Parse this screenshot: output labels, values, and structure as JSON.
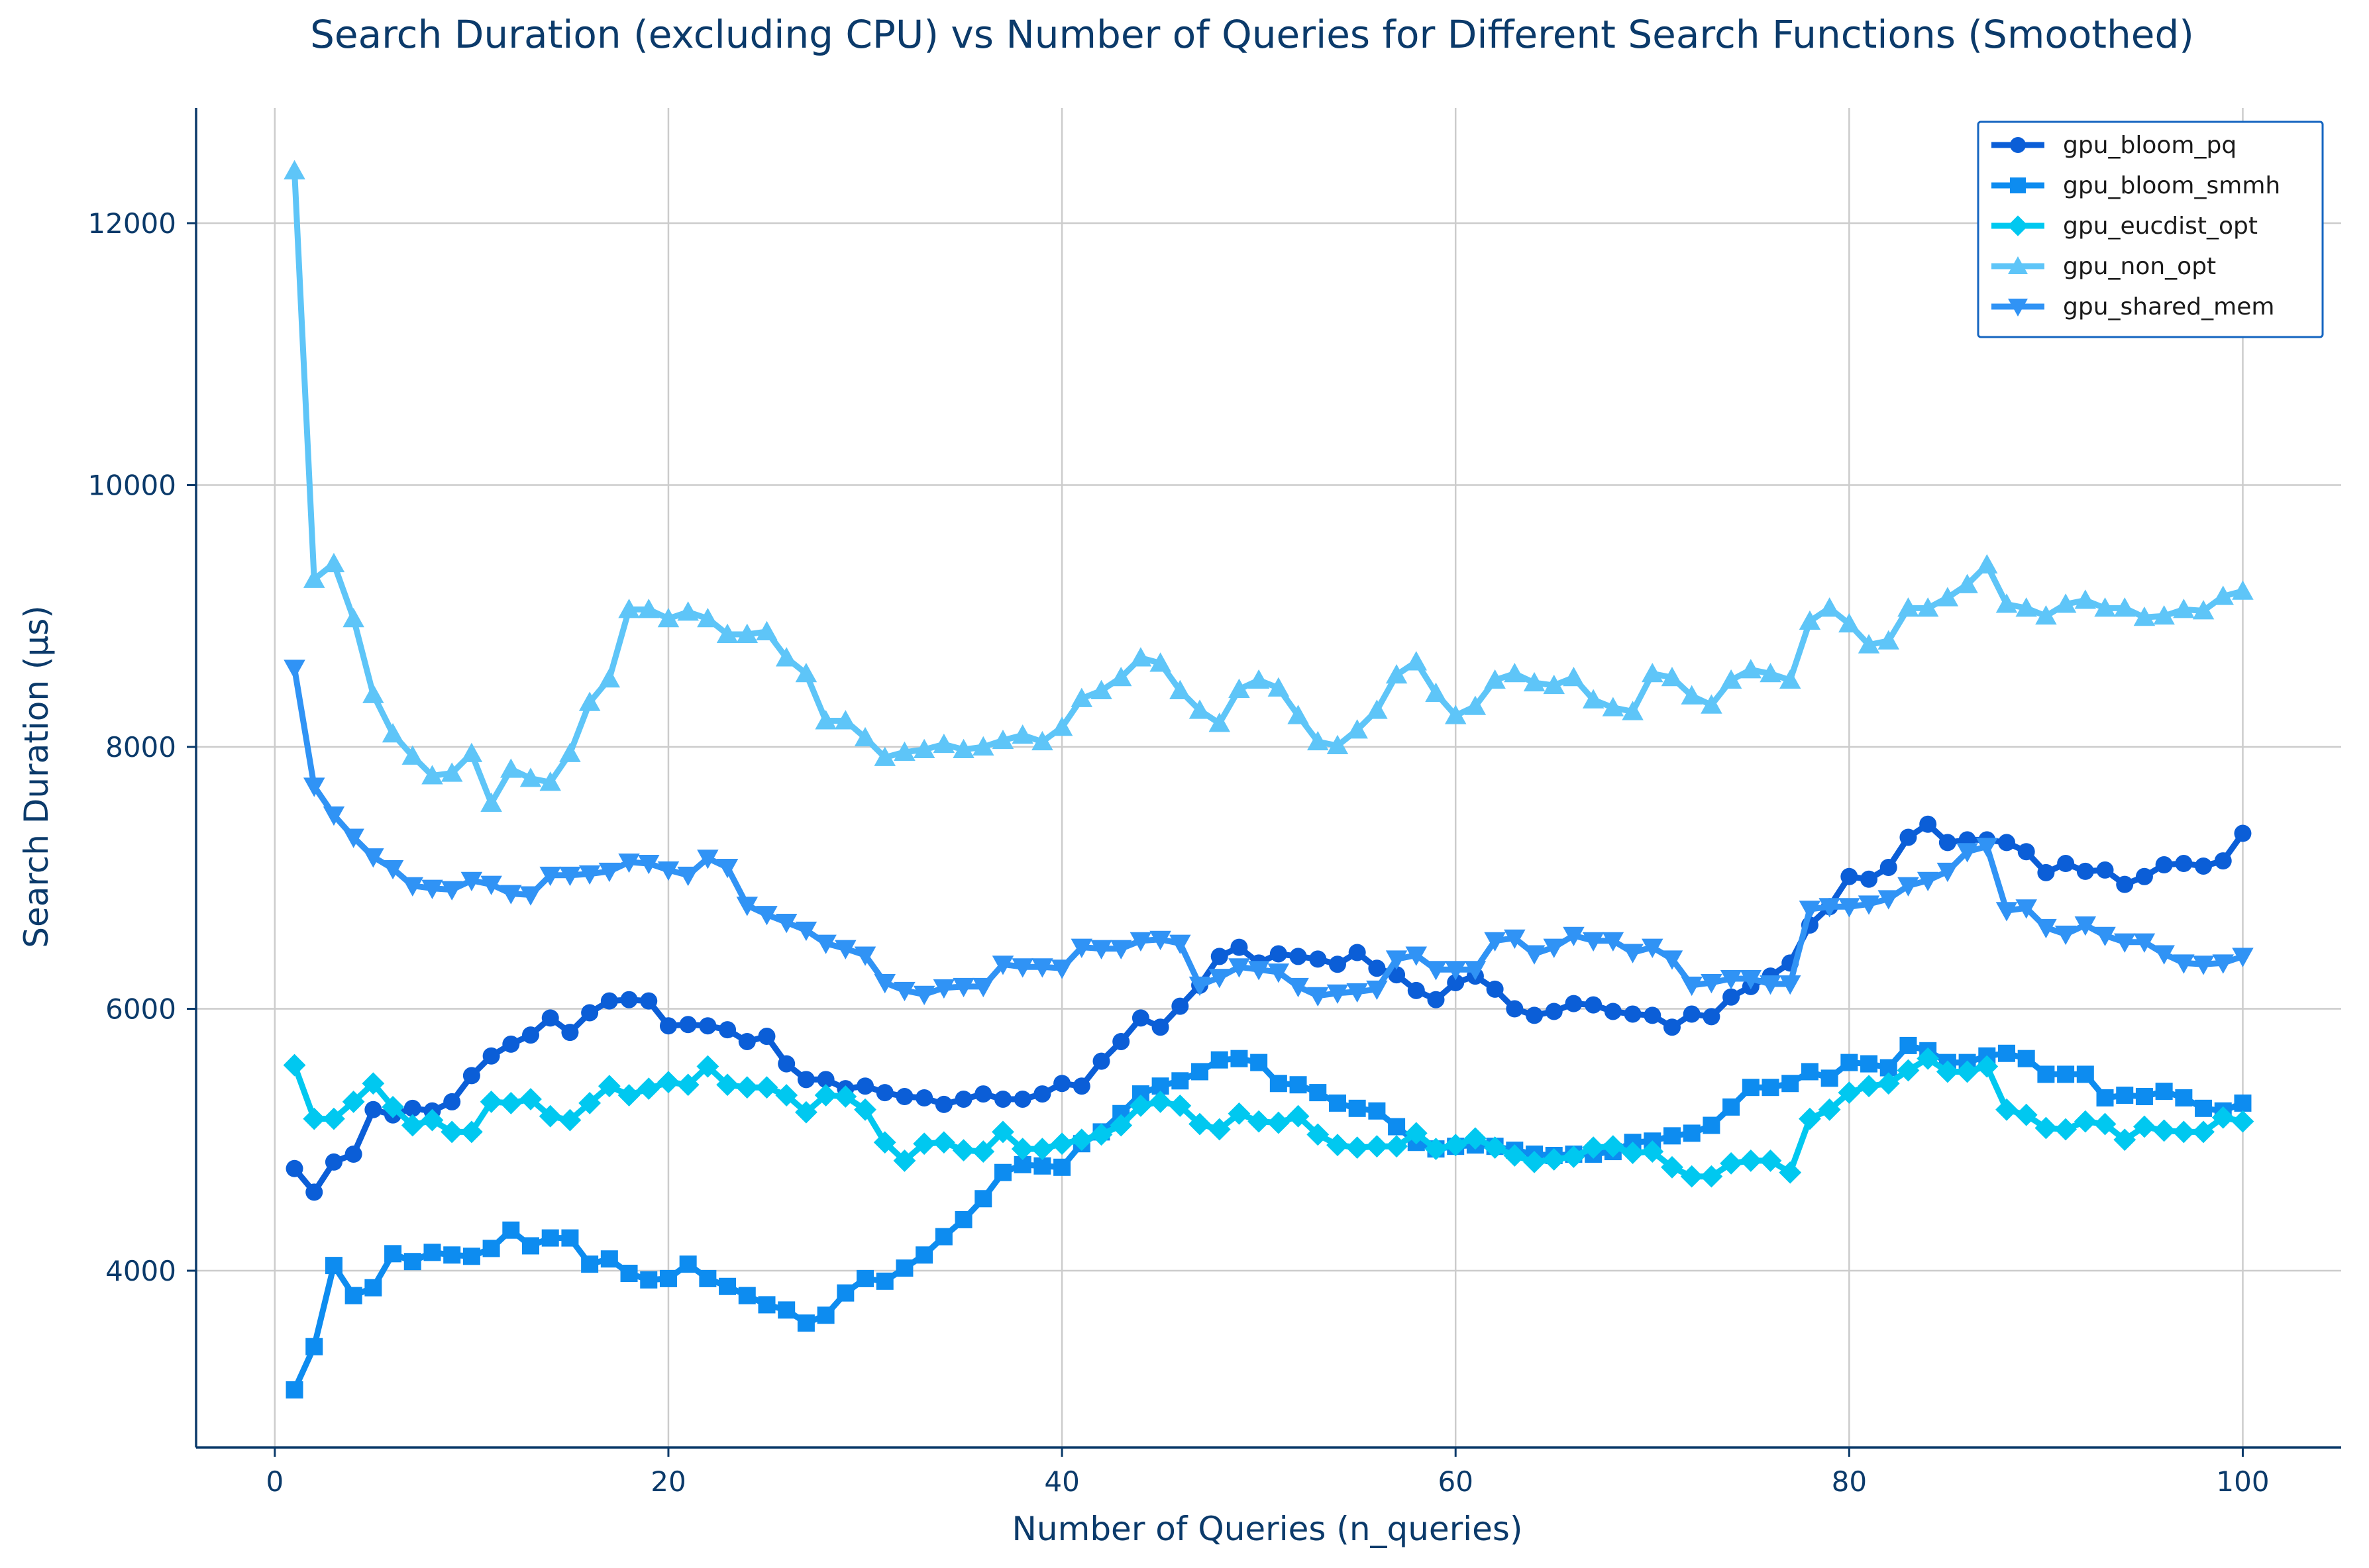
{
  "chart_data": {
    "type": "line",
    "title": "Search Duration (excluding CPU) vs Number of Queries for Different Search Functions (Smoothed)",
    "xlabel": "Number of Queries (n_queries)",
    "ylabel": "Search Duration (μs)",
    "xlim": [
      -4,
      105
    ],
    "ylim": [
      2650,
      12880
    ],
    "xticks": [
      0,
      20,
      40,
      60,
      80,
      100
    ],
    "yticks": [
      4000,
      6000,
      8000,
      10000,
      12000
    ],
    "grid": true,
    "legend_position": "top-right",
    "x": [
      1,
      2,
      3,
      4,
      5,
      6,
      7,
      8,
      9,
      10,
      11,
      12,
      13,
      14,
      15,
      16,
      17,
      18,
      19,
      20,
      21,
      22,
      23,
      24,
      25,
      26,
      27,
      28,
      29,
      30,
      31,
      32,
      33,
      34,
      35,
      36,
      37,
      38,
      39,
      40,
      41,
      42,
      43,
      44,
      45,
      46,
      47,
      48,
      49,
      50,
      51,
      52,
      53,
      54,
      55,
      56,
      57,
      58,
      59,
      60,
      61,
      62,
      63,
      64,
      65,
      66,
      67,
      68,
      69,
      70,
      71,
      72,
      73,
      74,
      75,
      76,
      77,
      78,
      79,
      80,
      81,
      82,
      83,
      84,
      85,
      86,
      87,
      88,
      89,
      90,
      91,
      92,
      93,
      94,
      95,
      96,
      97,
      98,
      99,
      100
    ],
    "series": [
      {
        "name": "gpu_bloom_pq",
        "color": "#0b5ed7",
        "marker": "circle",
        "values": [
          4780,
          4600,
          4830,
          4890,
          5230,
          5190,
          5240,
          5220,
          5290,
          5490,
          5640,
          5730,
          5800,
          5930,
          5820,
          5970,
          6060,
          6070,
          6060,
          5870,
          5880,
          5870,
          5840,
          5750,
          5790,
          5580,
          5460,
          5460,
          5390,
          5410,
          5360,
          5330,
          5320,
          5270,
          5310,
          5350,
          5310,
          5310,
          5350,
          5430,
          5410,
          5600,
          5750,
          5930,
          5860,
          6020,
          6180,
          6400,
          6470,
          6350,
          6420,
          6400,
          6380,
          6340,
          6430,
          6310,
          6260,
          6140,
          6070,
          6200,
          6250,
          6150,
          6000,
          5950,
          5980,
          6040,
          6030,
          5980,
          5960,
          5950,
          5860,
          5960,
          5940,
          6090,
          6170,
          6250,
          6350,
          6640,
          6780,
          7010,
          6990,
          7080,
          7310,
          7410,
          7270,
          7290,
          7290,
          7270,
          7200,
          7040,
          7110,
          7050,
          7060,
          6950,
          7010,
          7100,
          7110,
          7090,
          7130,
          7340
        ]
      },
      {
        "name": "gpu_bloom_smmh",
        "color": "#0d8cf0",
        "marker": "square",
        "values": [
          3090,
          3420,
          4040,
          3810,
          3870,
          4130,
          4070,
          4140,
          4120,
          4110,
          4170,
          4310,
          4190,
          4250,
          4250,
          4050,
          4090,
          3980,
          3930,
          3940,
          4050,
          3940,
          3880,
          3810,
          3740,
          3700,
          3600,
          3660,
          3830,
          3940,
          3920,
          4020,
          4120,
          4260,
          4390,
          4550,
          4750,
          4810,
          4800,
          4790,
          4970,
          5060,
          5200,
          5350,
          5410,
          5450,
          5520,
          5610,
          5620,
          5590,
          5430,
          5420,
          5360,
          5280,
          5240,
          5220,
          5100,
          4980,
          4930,
          4950,
          4960,
          4950,
          4920,
          4890,
          4880,
          4890,
          4890,
          4910,
          4980,
          4990,
          5030,
          5050,
          5110,
          5250,
          5400,
          5400,
          5430,
          5520,
          5470,
          5590,
          5580,
          5550,
          5720,
          5680,
          5590,
          5590,
          5640,
          5660,
          5620,
          5500,
          5500,
          5500,
          5320,
          5340,
          5330,
          5370,
          5320,
          5240,
          5220,
          5280
        ]
      },
      {
        "name": "gpu_eucdist_opt",
        "color": "#00c8f0",
        "marker": "diamond",
        "values": [
          5570,
          5160,
          5160,
          5290,
          5430,
          5250,
          5110,
          5150,
          5060,
          5060,
          5290,
          5280,
          5310,
          5180,
          5150,
          5280,
          5410,
          5340,
          5390,
          5440,
          5420,
          5560,
          5420,
          5400,
          5400,
          5340,
          5210,
          5340,
          5330,
          5230,
          4980,
          4840,
          4970,
          4980,
          4920,
          4910,
          5060,
          4930,
          4930,
          4970,
          5000,
          5040,
          5110,
          5260,
          5290,
          5260,
          5120,
          5080,
          5200,
          5140,
          5130,
          5180,
          5040,
          4960,
          4940,
          4950,
          4950,
          5050,
          4930,
          4960,
          5010,
          4940,
          4880,
          4830,
          4850,
          4870,
          4940,
          4950,
          4900,
          4910,
          4790,
          4720,
          4720,
          4820,
          4840,
          4840,
          4750,
          5160,
          5230,
          5360,
          5410,
          5430,
          5530,
          5620,
          5520,
          5520,
          5560,
          5230,
          5190,
          5090,
          5080,
          5140,
          5120,
          5000,
          5100,
          5070,
          5060,
          5060,
          5170,
          5140
        ]
      },
      {
        "name": "gpu_non_opt",
        "color": "#5ec5f8",
        "marker": "triangle-up",
        "values": [
          12400,
          9280,
          9400,
          8980,
          8400,
          8100,
          7930,
          7780,
          7800,
          7950,
          7570,
          7830,
          7760,
          7730,
          7950,
          8340,
          8520,
          9050,
          9050,
          8980,
          9030,
          8980,
          8860,
          8860,
          8880,
          8680,
          8560,
          8200,
          8200,
          8070,
          7920,
          7960,
          7980,
          8020,
          7980,
          8000,
          8050,
          8090,
          8040,
          8150,
          8370,
          8430,
          8530,
          8680,
          8640,
          8430,
          8280,
          8180,
          8440,
          8510,
          8450,
          8240,
          8040,
          8010,
          8130,
          8280,
          8550,
          8650,
          8410,
          8240,
          8310,
          8510,
          8560,
          8490,
          8470,
          8530,
          8360,
          8300,
          8270,
          8560,
          8530,
          8390,
          8320,
          8510,
          8590,
          8560,
          8510,
          8960,
          9060,
          8940,
          8780,
          8810,
          9060,
          9060,
          9140,
          9240,
          9390,
          9090,
          9060,
          9000,
          9090,
          9120,
          9060,
          9060,
          8990,
          9000,
          9050,
          9040,
          9150,
          9190
        ]
      },
      {
        "name": "gpu_shared_mem",
        "color": "#3093f5",
        "marker": "triangle-down",
        "values": [
          8600,
          7700,
          7480,
          7310,
          7160,
          7070,
          6940,
          6920,
          6910,
          6980,
          6950,
          6880,
          6870,
          7020,
          7020,
          7030,
          7050,
          7120,
          7110,
          7060,
          7020,
          7150,
          7080,
          6790,
          6720,
          6660,
          6600,
          6500,
          6460,
          6410,
          6200,
          6140,
          6110,
          6160,
          6170,
          6170,
          6340,
          6320,
          6320,
          6310,
          6470,
          6460,
          6460,
          6520,
          6530,
          6500,
          6180,
          6240,
          6320,
          6300,
          6280,
          6170,
          6100,
          6120,
          6130,
          6150,
          6380,
          6410,
          6300,
          6300,
          6300,
          6520,
          6540,
          6420,
          6470,
          6560,
          6520,
          6520,
          6430,
          6470,
          6380,
          6180,
          6200,
          6230,
          6230,
          6190,
          6190,
          6760,
          6780,
          6780,
          6800,
          6840,
          6940,
          6980,
          7050,
          7200,
          7240,
          6750,
          6770,
          6620,
          6570,
          6640,
          6560,
          6510,
          6510,
          6420,
          6350,
          6340,
          6350,
          6400
        ]
      }
    ]
  }
}
